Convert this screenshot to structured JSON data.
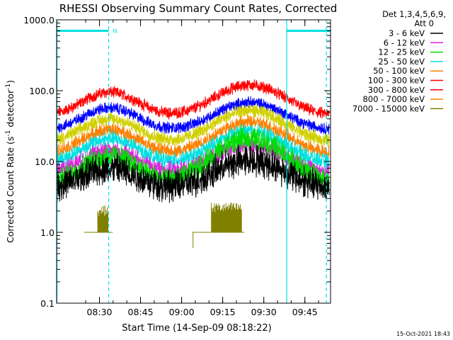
{
  "chart_data": {
    "type": "line",
    "title": "RHESSI Observing Summary Count Rates, Corrected",
    "xlabel": "Start Time (14-Sep-09 08:18:22)",
    "ylabel": "Corrected Count Rate (s⁻¹ detector⁻¹)",
    "ylabel_parts": {
      "main": "Corrected Count Rate (s",
      "sup1": "-1",
      "mid": " detector",
      "sup2": "-1",
      "end": ")"
    },
    "yscale": "log",
    "ylim": [
      0.1,
      1000
    ],
    "xlim": [
      -4,
      96
    ],
    "x_unit_note": "minutes after 08:18:22",
    "y_ticks": [
      {
        "value": 0.1,
        "label": "0.1"
      },
      {
        "value": 1,
        "label": "1.0"
      },
      {
        "value": 10,
        "label": "10.0"
      },
      {
        "value": 100,
        "label": "100.0"
      },
      {
        "value": 1000,
        "label": "1000.0"
      }
    ],
    "x_ticks": [
      {
        "value": 11.63,
        "label": "08:30"
      },
      {
        "value": 26.63,
        "label": "08:45"
      },
      {
        "value": 41.63,
        "label": "09:00"
      },
      {
        "value": 56.63,
        "label": "09:15"
      },
      {
        "value": 71.63,
        "label": "09:30"
      },
      {
        "value": 86.63,
        "label": "09:45"
      }
    ],
    "legend": {
      "position": "top-right",
      "header": [
        "Det 1,3,4,5,6,9,",
        "Att 0"
      ],
      "entries": [
        {
          "label": "3 - 6 keV",
          "color": "#000000"
        },
        {
          "label": "6 - 12 keV",
          "color": "#e020e0"
        },
        {
          "label": "12 - 25 keV",
          "color": "#00dd00"
        },
        {
          "label": "25 - 50 keV",
          "color": "#00e0e0"
        },
        {
          "label": "50 - 100 keV",
          "color": "#ff8000"
        },
        {
          "label": "100 - 300 keV",
          "color": "#ff0000"
        },
        {
          "label": "300 - 800 keV",
          "color": "#ff0000"
        },
        {
          "label": "800 - 7000 keV",
          "color": "#ff8000"
        },
        {
          "label": "7000 - 15000 keV",
          "color": "#808000"
        }
      ]
    },
    "series": [
      {
        "color": "#ff0000",
        "base": 45,
        "peak1": 95,
        "peak2": 120,
        "noise": 0.03
      },
      {
        "color": "#0000ff",
        "base": 28,
        "peak1": 57,
        "peak2": 68,
        "noise": 0.03
      },
      {
        "color": "#d0d000",
        "base": 19,
        "peak1": 40,
        "peak2": 52,
        "noise": 0.035
      },
      {
        "color": "#ff8000",
        "base": 13,
        "peak1": 28,
        "peak2": 36,
        "noise": 0.035
      },
      {
        "color": "#00e0e0",
        "base": 9.5,
        "peak1": 21,
        "peak2": 27,
        "noise": 0.04
      },
      {
        "color": "#e020e0",
        "base": 7,
        "peak1": 14.5,
        "peak2": 17,
        "noise": 0.045
      },
      {
        "color": "#00dd00",
        "base": 5,
        "peak1": 12,
        "peak2": 21,
        "noise": 0.06
      },
      {
        "color": "#000000",
        "base": 4.2,
        "peak1": 8,
        "peak2": 10.5,
        "noise": 0.08
      }
    ],
    "olive_series": {
      "color": "#808000",
      "segments": [
        {
          "x0": 6.0,
          "x1": 16.5,
          "base": 1.0,
          "spike_x0": 11.0,
          "spike_x1": 14.8,
          "spike_val": 2.0
        },
        {
          "x0": 45.5,
          "x1": 64.5,
          "base": 1.0,
          "spike_x0": 52.5,
          "spike_x1": 63.5,
          "spike_val": 2.2,
          "dip_x": 45.8,
          "dip_val": 0.6
        }
      ]
    },
    "flags": {
      "label": "N",
      "night_bars": [
        {
          "x0": -4,
          "x1": 15.0
        },
        {
          "x0": 80.0,
          "x1": 96
        }
      ],
      "night_bar_level": 700,
      "cyan_solid_x": [
        -4,
        80.0
      ],
      "cyan_dashed_x": [
        15.0,
        94.5
      ]
    },
    "timestamp": "15-Oct-2021 18:43"
  }
}
